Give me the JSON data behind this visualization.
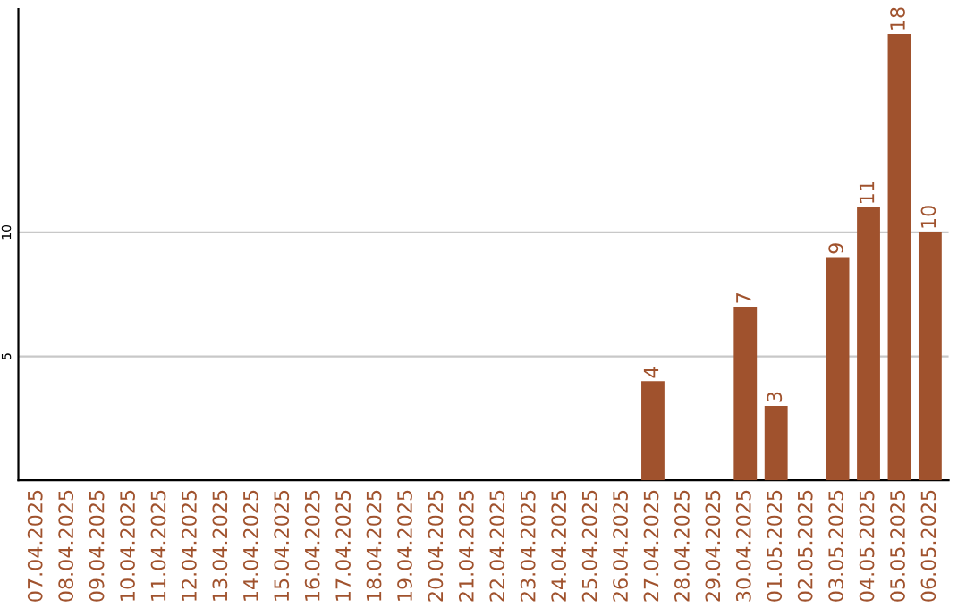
{
  "chart_data": {
    "type": "bar",
    "categories": [
      "07.04.2025",
      "08.04.2025",
      "09.04.2025",
      "10.04.2025",
      "11.04.2025",
      "12.04.2025",
      "13.04.2025",
      "14.04.2025",
      "15.04.2025",
      "16.04.2025",
      "17.04.2025",
      "18.04.2025",
      "19.04.2025",
      "20.04.2025",
      "21.04.2025",
      "22.04.2025",
      "23.04.2025",
      "24.04.2025",
      "25.04.2025",
      "26.04.2025",
      "27.04.2025",
      "28.04.2025",
      "29.04.2025",
      "30.04.2025",
      "01.05.2025",
      "02.05.2025",
      "03.05.2025",
      "04.05.2025",
      "05.05.2025",
      "06.05.2025"
    ],
    "values": [
      0,
      0,
      0,
      0,
      0,
      0,
      0,
      0,
      0,
      0,
      0,
      0,
      0,
      0,
      0,
      0,
      0,
      0,
      0,
      0,
      4,
      0,
      0,
      7,
      3,
      0,
      9,
      11,
      18,
      10
    ],
    "value_labels": [
      null,
      null,
      null,
      null,
      null,
      null,
      null,
      null,
      null,
      null,
      null,
      null,
      null,
      null,
      null,
      null,
      null,
      null,
      null,
      null,
      "4",
      null,
      null,
      "7",
      "3",
      null,
      "9",
      "11",
      "18",
      "10"
    ],
    "color": "#a0522d",
    "ylim": [
      0,
      19
    ],
    "yticks": [
      5,
      10
    ],
    "grid": "y"
  }
}
